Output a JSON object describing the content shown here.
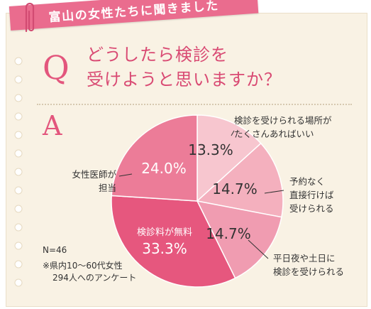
{
  "banner": {
    "text": "富山の女性たちに聞きました"
  },
  "question": {
    "mark": "Q",
    "line1": "どうしたら検診を",
    "line2": "受けようと思いますか？"
  },
  "answer": {
    "mark": "A"
  },
  "colors": {
    "accent": "#e3567d",
    "banner": "#ea6c8e",
    "background": "#f9f2e4",
    "slice_1": "#f7c6cf",
    "slice_2": "#f4b0be",
    "slice_3": "#f09cb1",
    "slice_4": "#e6577e",
    "slice_5": "#ec7c98"
  },
  "chart_data": {
    "type": "pie",
    "start_angle_deg": 0,
    "direction": "clockwise",
    "slices": [
      {
        "value": 13.3,
        "percent_label": "13.3%",
        "callout": [
          "検診を受けられる場所が",
          "たくさんあればいい"
        ]
      },
      {
        "value": 14.7,
        "percent_label": "14.7%",
        "callout": [
          "予約なく",
          "直接行けば",
          "受けられる"
        ]
      },
      {
        "value": 14.7,
        "percent_label": "14.7%",
        "callout": [
          "平日夜や土日に",
          "検診を受けられる"
        ]
      },
      {
        "value": 33.3,
        "percent_label": "33.3%",
        "inner_label": "検診料が無料"
      },
      {
        "value": 24.0,
        "percent_label": "24.0%",
        "callout": [
          "女性医師が",
          "担当"
        ]
      }
    ]
  },
  "notes": {
    "n": "N=46",
    "line1": "※県内10～60代女性",
    "line2": "294人へのアンケート"
  }
}
